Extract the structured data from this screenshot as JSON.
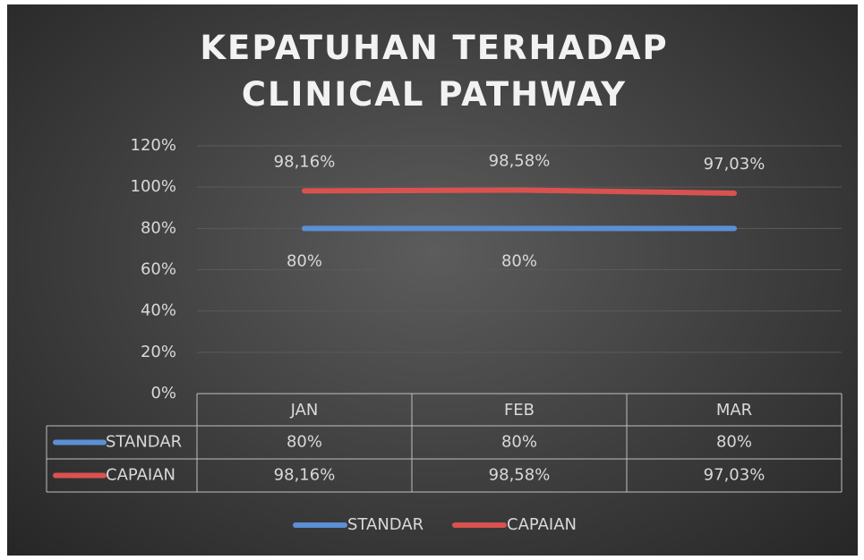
{
  "chart_data": {
    "type": "line",
    "title": "KEPATUHAN TERHADAP CLINICAL PATHWAY",
    "categories": [
      "JAN",
      "FEB",
      "MAR"
    ],
    "series": [
      {
        "name": "STANDAR",
        "color": "#5b8fd6",
        "values": [
          80,
          80,
          80
        ],
        "value_labels": [
          "80%",
          "80%",
          null
        ]
      },
      {
        "name": "CAPAIAN",
        "color": "#d9524f",
        "values": [
          98.16,
          98.58,
          97.03
        ],
        "value_labels": [
          "98,16%",
          "98,58%",
          "97,03%"
        ]
      }
    ],
    "data_table": {
      "rows": [
        {
          "name": "STANDAR",
          "cells": [
            "80%",
            "80%",
            "80%"
          ]
        },
        {
          "name": "CAPAIAN",
          "cells": [
            "98,16%",
            "98,58%",
            "97,03%"
          ]
        }
      ]
    },
    "ylim": [
      0,
      120
    ],
    "yticks": [
      {
        "value": 0,
        "label": "0%"
      },
      {
        "value": 20,
        "label": "20%"
      },
      {
        "value": 40,
        "label": "40%"
      },
      {
        "value": 60,
        "label": "60%"
      },
      {
        "value": 80,
        "label": "80%"
      },
      {
        "value": 100,
        "label": "100%"
      },
      {
        "value": 120,
        "label": "120%"
      }
    ],
    "grid": true,
    "legend": "bottom"
  }
}
